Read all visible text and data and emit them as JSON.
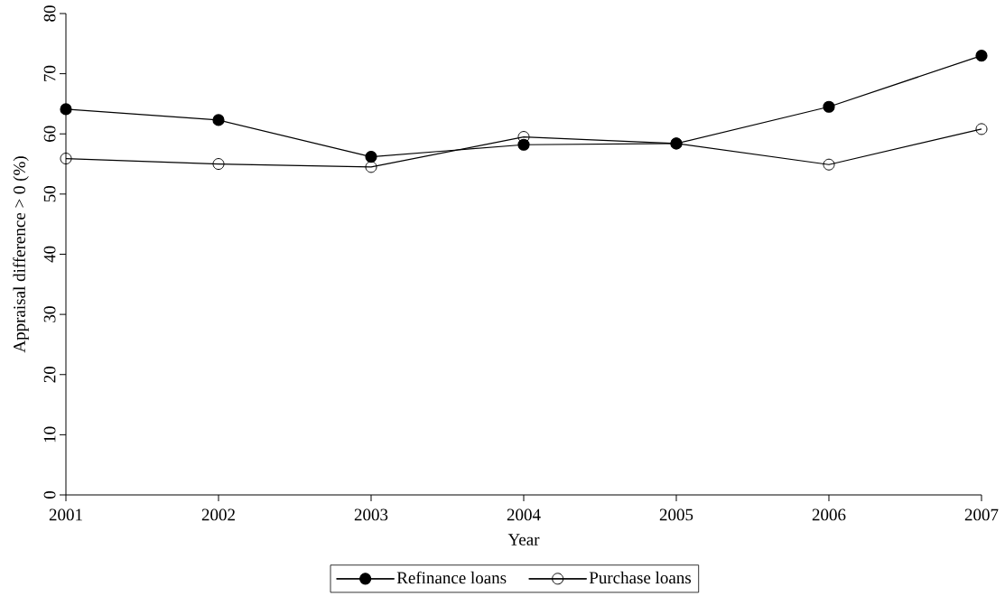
{
  "chart_data": {
    "type": "line",
    "xlabel": "Year",
    "ylabel": "Appraisal difference > 0 (%)",
    "x": [
      2001,
      2002,
      2003,
      2004,
      2005,
      2006,
      2007
    ],
    "series": [
      {
        "name": "Refinance loans",
        "color": "#000000",
        "marker": "circle",
        "values": [
          64.1,
          62.3,
          56.2,
          58.2,
          58.4,
          64.5,
          73.0
        ]
      },
      {
        "name": "Purchase loans",
        "color": "#000000",
        "marker": "circle",
        "values": [
          55.9,
          55.0,
          54.5,
          59.5,
          58.4,
          54.9,
          60.8
        ]
      }
    ],
    "xlim": [
      2001,
      2007
    ],
    "xticks": [
      2001,
      2002,
      2003,
      2004,
      2005,
      2006,
      2007
    ],
    "ylim": [
      0,
      80
    ],
    "yticks": [
      0,
      10,
      20,
      30,
      40,
      50,
      60,
      70,
      80
    ],
    "grid": false,
    "legend": "bottom",
    "line_style": "solid"
  }
}
